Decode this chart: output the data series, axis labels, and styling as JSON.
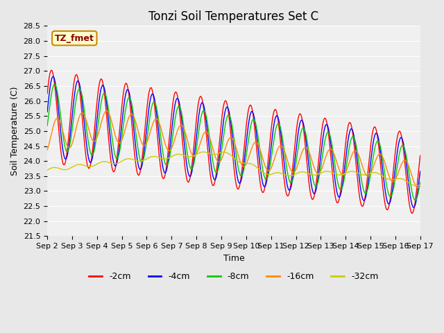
{
  "title": "Tonzi Soil Temperatures Set C",
  "xlabel": "Time",
  "ylabel": "Soil Temperature (C)",
  "ylim": [
    21.5,
    28.5
  ],
  "annotation": "TZ_fmet",
  "series_colors": [
    "#ff0000",
    "#0000ff",
    "#00cc00",
    "#ff8800",
    "#cccc00"
  ],
  "series_labels": [
    "-2cm",
    "-4cm",
    "-8cm",
    "-16cm",
    "-32cm"
  ],
  "x_tick_labels": [
    "Sep 2",
    "Sep 3",
    "Sep 4",
    "Sep 5",
    "Sep 6",
    "Sep 7",
    "Sep 8",
    "Sep 9",
    "Sep 10",
    "Sep 11",
    "Sep 12",
    "Sep 13",
    "Sep 14",
    "Sep 15",
    "Sep 16",
    "Sep 17"
  ],
  "n_days": 15,
  "bg_color": "#e8e8e8",
  "plot_bg_color": "#f0f0f0",
  "grid_color": "#ffffff",
  "title_fontsize": 12,
  "axis_label_fontsize": 9,
  "tick_fontsize": 8
}
